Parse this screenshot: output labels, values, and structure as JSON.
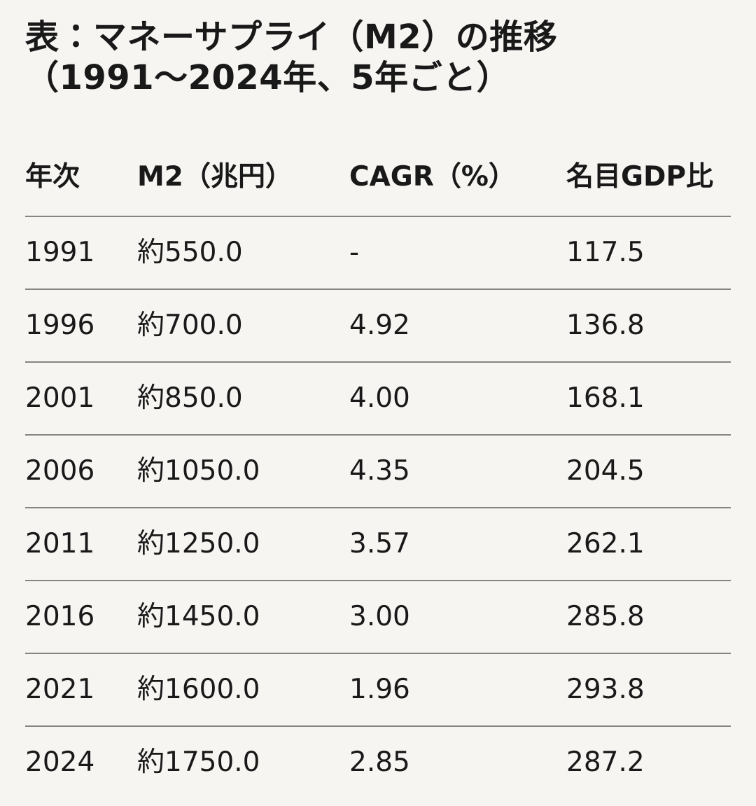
{
  "page": {
    "background_color": "#f7f5f2",
    "text_color": "#191919",
    "divider_color": "#858585"
  },
  "title": {
    "full": "表：マネーサプライ（M2）の推移（1991〜2024年、5年ごと）",
    "line1": "表：マネーサプライ（M2）の推移",
    "line2": "（1991〜2024年、5年ごと）"
  },
  "table": {
    "columns": [
      "年次",
      "M2（兆円）",
      "CAGR（%）",
      "名目GDP比"
    ],
    "rows": [
      {
        "year": "1991",
        "m2": "約550.0",
        "cagr": "-",
        "gdp": "117.5"
      },
      {
        "year": "1996",
        "m2": "約700.0",
        "cagr": "4.92",
        "gdp": "136.8"
      },
      {
        "year": "2001",
        "m2": "約850.0",
        "cagr": "4.00",
        "gdp": "168.1"
      },
      {
        "year": "2006",
        "m2": "約1050.0",
        "cagr": "4.35",
        "gdp": "204.5"
      },
      {
        "year": "2011",
        "m2": "約1250.0",
        "cagr": "3.57",
        "gdp": "262.1"
      },
      {
        "year": "2016",
        "m2": "約1450.0",
        "cagr": "3.00",
        "gdp": "285.8"
      },
      {
        "year": "2021",
        "m2": "約1600.0",
        "cagr": "1.96",
        "gdp": "293.8"
      },
      {
        "year": "2024",
        "m2": "約1750.0",
        "cagr": "2.85",
        "gdp": "287.2"
      }
    ]
  },
  "chart_data": {
    "type": "table",
    "title": "表：マネーサプライ（M2）の推移（1991〜2024年、5年ごと）",
    "columns": [
      "年次",
      "M2（兆円）",
      "CAGR（%）",
      "名目GDP比"
    ],
    "rows": [
      [
        "1991",
        "約550.0",
        "-",
        "117.5"
      ],
      [
        "1996",
        "約700.0",
        "4.92",
        "136.8"
      ],
      [
        "2001",
        "約850.0",
        "4.00",
        "168.1"
      ],
      [
        "2006",
        "約1050.0",
        "4.35",
        "204.5"
      ],
      [
        "2011",
        "約1250.0",
        "3.57",
        "262.1"
      ],
      [
        "2016",
        "約1450.0",
        "3.00",
        "285.8"
      ],
      [
        "2021",
        "約1600.0",
        "1.96",
        "293.8"
      ],
      [
        "2024",
        "約1750.0",
        "2.85",
        "287.2"
      ]
    ],
    "series": [
      {
        "name": "M2（兆円）",
        "x": [
          1991,
          1996,
          2001,
          2006,
          2011,
          2016,
          2021,
          2024
        ],
        "values": [
          550.0,
          700.0,
          850.0,
          1050.0,
          1250.0,
          1450.0,
          1600.0,
          1750.0
        ]
      },
      {
        "name": "CAGR（%）",
        "x": [
          1991,
          1996,
          2001,
          2006,
          2011,
          2016,
          2021,
          2024
        ],
        "values": [
          null,
          4.92,
          4.0,
          4.35,
          3.57,
          3.0,
          1.96,
          2.85
        ]
      },
      {
        "name": "名目GDP比",
        "x": [
          1991,
          1996,
          2001,
          2006,
          2011,
          2016,
          2021,
          2024
        ],
        "values": [
          117.5,
          136.8,
          168.1,
          204.5,
          262.1,
          285.8,
          293.8,
          287.2
        ]
      }
    ],
    "legend_position": "none",
    "grid": "horizontal-rules"
  }
}
